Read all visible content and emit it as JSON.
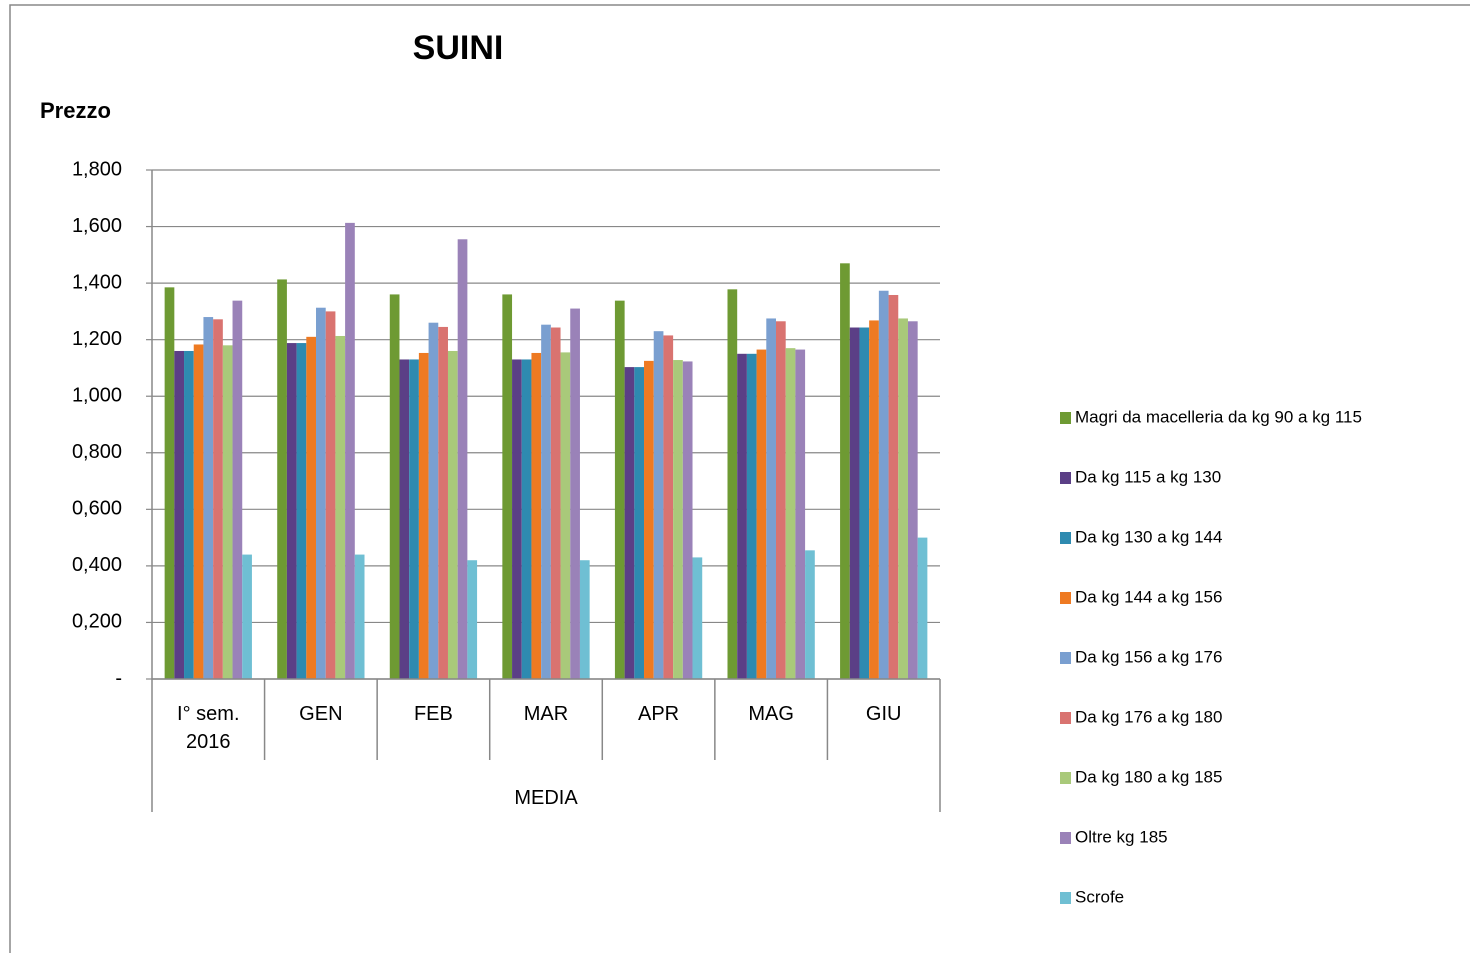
{
  "chart_data": {
    "type": "bar",
    "title": "SUINI",
    "y_label": "Prezzo",
    "categories": [
      "I° sem. 2016",
      "GEN",
      "FEB",
      "MAR",
      "APR",
      "MAG",
      "GIU"
    ],
    "group_label": "MEDIA",
    "series": [
      {
        "name": "Magri da macelleria da kg 90 a kg 115",
        "color": "#6e9a33",
        "values": [
          1.385,
          1.413,
          1.36,
          1.36,
          1.338,
          1.378,
          1.47
        ]
      },
      {
        "name": "Da kg 115 a kg 130",
        "color": "#5b3f86",
        "values": [
          1.16,
          1.188,
          1.13,
          1.13,
          1.103,
          1.15,
          1.243
        ]
      },
      {
        "name": "Da kg 130 a kg 144",
        "color": "#2e8ab0",
        "values": [
          1.16,
          1.188,
          1.13,
          1.13,
          1.103,
          1.15,
          1.243
        ]
      },
      {
        "name": "Da kg 144 a kg 156",
        "color": "#ee7a22",
        "values": [
          1.183,
          1.21,
          1.153,
          1.153,
          1.125,
          1.165,
          1.268
        ]
      },
      {
        "name": "Da kg 156 a kg 176",
        "color": "#7a9fd0",
        "values": [
          1.28,
          1.313,
          1.26,
          1.253,
          1.23,
          1.275,
          1.373
        ]
      },
      {
        "name": "Da kg 176 a kg 180",
        "color": "#d97370",
        "values": [
          1.272,
          1.3,
          1.245,
          1.243,
          1.215,
          1.265,
          1.358
        ]
      },
      {
        "name": "Da kg 180 a kg 185",
        "color": "#a9c97a",
        "values": [
          1.18,
          1.213,
          1.16,
          1.155,
          1.128,
          1.17,
          1.275
        ]
      },
      {
        "name": "Oltre kg 185",
        "color": "#9a82b8",
        "values": [
          1.338,
          1.613,
          1.555,
          1.31,
          1.123,
          1.165,
          1.265
        ]
      },
      {
        "name": "Scrofe",
        "color": "#6fbfd3",
        "values": [
          0.44,
          0.44,
          0.42,
          0.42,
          0.43,
          0.455,
          0.5
        ]
      }
    ],
    "ylim": [
      0,
      1.8
    ],
    "yticks": [
      {
        "value": 0,
        "label": "-"
      },
      {
        "value": 0.2,
        "label": "0,200"
      },
      {
        "value": 0.4,
        "label": "0,400"
      },
      {
        "value": 0.6,
        "label": "0,600"
      },
      {
        "value": 0.8,
        "label": "0,800"
      },
      {
        "value": 1.0,
        "label": "1,000"
      },
      {
        "value": 1.2,
        "label": "1,200"
      },
      {
        "value": 1.4,
        "label": "1,400"
      },
      {
        "value": 1.6,
        "label": "1,600"
      },
      {
        "value": 1.8,
        "label": "1,800"
      }
    ],
    "grid": true,
    "legend": "right"
  }
}
